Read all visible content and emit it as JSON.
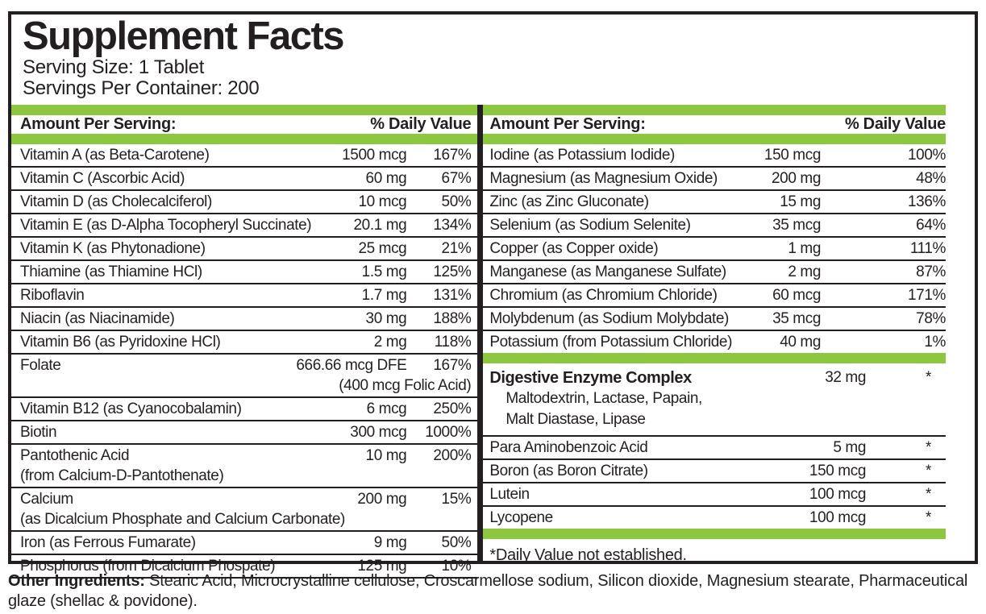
{
  "label": {
    "title": "Supplement Facts",
    "serving_size": "Serving Size: 1 Tablet",
    "servings_per_container": "Servings Per Container: 200",
    "column_header": {
      "amount": "Amount Per Serving:",
      "daily_value": "% Daily Value"
    },
    "left_rows": [
      {
        "name": "Vitamin A (as Beta-Carotene)",
        "amount": "1500 mcg",
        "dv": "167%"
      },
      {
        "name": "Vitamin C (Ascorbic Acid)",
        "amount": "60 mg",
        "dv": "67%"
      },
      {
        "name": "Vitamin D (as Cholecalciferol)",
        "amount": "10 mcg",
        "dv": "50%"
      },
      {
        "name": "Vitamin E (as D-Alpha Tocopheryl Succinate)",
        "amount": "20.1 mg",
        "dv": "134%"
      },
      {
        "name": "Vitamin K (as Phytonadione)",
        "amount": "25 mcg",
        "dv": "21%"
      },
      {
        "name": "Thiamine (as Thiamine HCl)",
        "amount": "1.5 mg",
        "dv": "125%"
      },
      {
        "name": "Riboflavin",
        "amount": "1.7 mg",
        "dv": "131%"
      },
      {
        "name": "Niacin (as Niacinamide)",
        "amount": "30 mg",
        "dv": "188%"
      },
      {
        "name": "Vitamin B6 (as Pyridoxine HCl)",
        "amount": "2 mg",
        "dv": "118%"
      },
      {
        "name": "Folate",
        "amount": "666.66 mcg DFE",
        "dv": "167%",
        "note": "(400 mcg Folic Acid)",
        "note_align": "right"
      },
      {
        "name": "Vitamin B12 (as Cyanocobalamin)",
        "amount": "6 mcg",
        "dv": "250%"
      },
      {
        "name": "Biotin",
        "amount": "300 mcg",
        "dv": "1000%"
      },
      {
        "name": "Pantothenic Acid",
        "amount": "10 mg",
        "dv": "200%",
        "note": "(from Calcium-D-Pantothenate)",
        "note_align": "left"
      },
      {
        "name": "Calcium",
        "amount": "200 mg",
        "dv": "15%",
        "note": "(as Dicalcium Phosphate and Calcium Carbonate)",
        "note_align": "left"
      },
      {
        "name": "Iron (as Ferrous Fumarate)",
        "amount": "9 mg",
        "dv": "50%"
      },
      {
        "name": "Phosphorus (from Dicalcium Phospate)",
        "amount": "125 mg",
        "dv": "10%"
      }
    ],
    "right_rows": [
      {
        "name": "Iodine (as Potassium Iodide)",
        "amount": "150 mcg",
        "dv": "100%"
      },
      {
        "name": "Magnesium (as Magnesium Oxide)",
        "amount": "200 mg",
        "dv": "48%"
      },
      {
        "name": "Zinc (as Zinc Gluconate)",
        "amount": "15 mg",
        "dv": "136%"
      },
      {
        "name": "Selenium (as Sodium Selenite)",
        "amount": "35 mcg",
        "dv": "64%"
      },
      {
        "name": "Copper (as Copper oxide)",
        "amount": "1 mg",
        "dv": "111%"
      },
      {
        "name": "Manganese (as Manganese Sulfate)",
        "amount": "2 mg",
        "dv": "87%"
      },
      {
        "name": "Chromium (as Chromium Chloride)",
        "amount": "60 mcg",
        "dv": "171%"
      },
      {
        "name": "Molybdenum (as Sodium Molybdate)",
        "amount": "35 mcg",
        "dv": "78%"
      },
      {
        "name": "Potassium (from Potassium Chloride)",
        "amount": "40 mg",
        "dv": "1%"
      }
    ],
    "complex": {
      "name": "Digestive Enzyme Complex",
      "amount": "32 mg",
      "dv": "*",
      "ingredients_line1": "Maltodextrin, Lactase, Papain,",
      "ingredients_line2": "Malt Diastase, Lipase"
    },
    "right_rows2": [
      {
        "name": "Para Aminobenzoic Acid",
        "amount": "5 mg",
        "dv": "*"
      },
      {
        "name": "Boron (as Boron Citrate)",
        "amount": "150 mcg",
        "dv": "*"
      },
      {
        "name": "Lutein",
        "amount": "100 mcg",
        "dv": "*"
      },
      {
        "name": "Lycopene",
        "amount": "100 mcg",
        "dv": "*"
      }
    ],
    "footnote": "*Daily Value not established.",
    "other_ingredients_label": "Other Ingredients:",
    "other_ingredients_text": " Stearic Acid, Microcrystalline cellulose, Croscarmellose sodium, Silicon dioxide, Magnesium stearate, Pharmaceutical glaze (shellac & povidone).",
    "colors": {
      "accent_green": "#8dc63f",
      "text": "#231f20"
    }
  }
}
